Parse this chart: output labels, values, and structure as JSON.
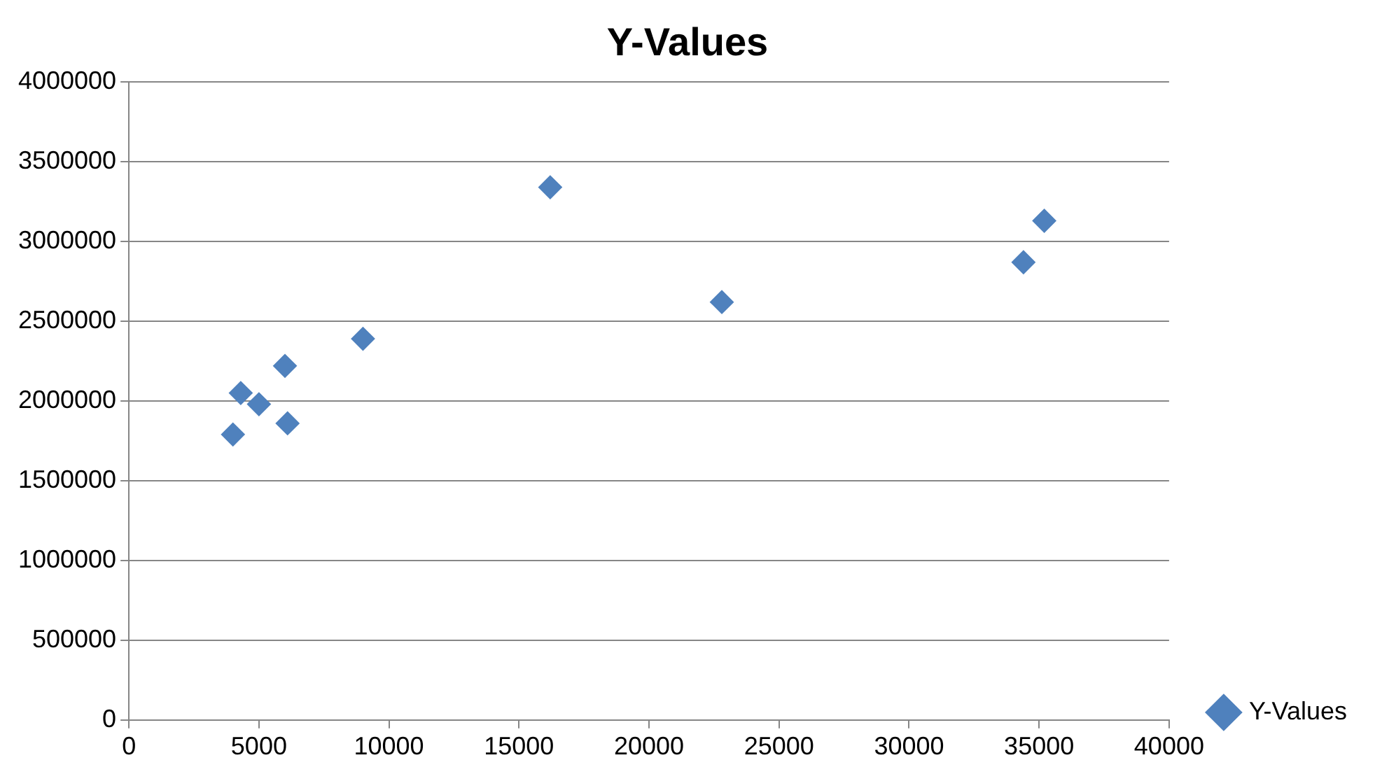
{
  "chart_data": {
    "type": "scatter",
    "title": "Y-Values",
    "x": [
      4000,
      4300,
      5000,
      6000,
      6100,
      9000,
      16200,
      22800,
      34400,
      35200
    ],
    "series": [
      {
        "name": "Y-Values",
        "color": "#4f81bd",
        "values": [
          1790000,
          2050000,
          1980000,
          2220000,
          1860000,
          2390000,
          3340000,
          2620000,
          2870000,
          3130000
        ]
      }
    ],
    "xlim": [
      0,
      40000
    ],
    "xticks": [
      0,
      5000,
      10000,
      15000,
      20000,
      25000,
      30000,
      35000,
      40000
    ],
    "ylim": [
      0,
      4000000
    ],
    "yticks": [
      0,
      500000,
      1000000,
      1500000,
      2000000,
      2500000,
      3000000,
      3500000,
      4000000
    ],
    "grid": "y",
    "legend": "right",
    "marker": "diamond"
  }
}
